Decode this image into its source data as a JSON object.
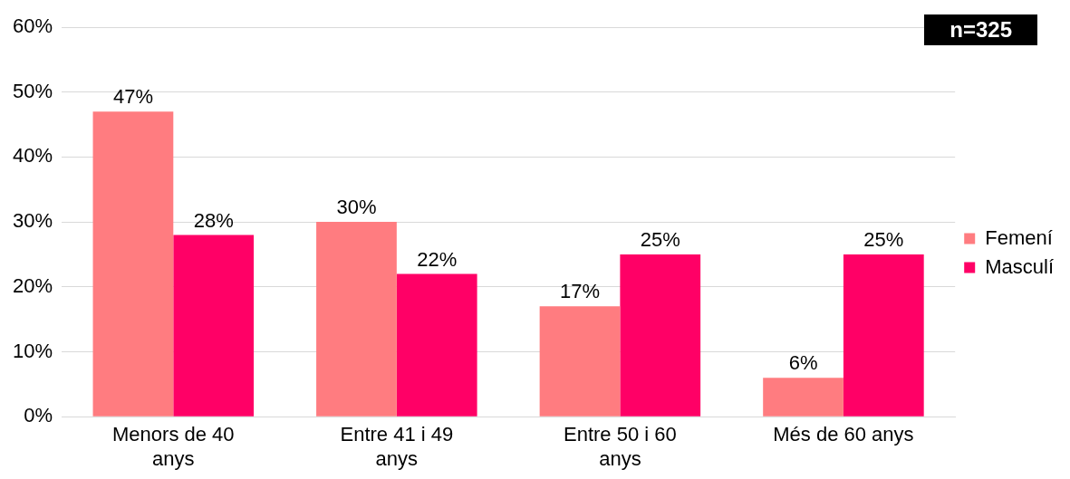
{
  "chart_data": {
    "type": "bar",
    "categories": [
      "Menors de 40 anys",
      "Entre 41 i 49 anys",
      "Entre 50 i 60 anys",
      "Més de 60 anys"
    ],
    "series": [
      {
        "name": "Femení",
        "color": "#ff7c80",
        "values": [
          47,
          30,
          17,
          6
        ],
        "value_labels": [
          "47%",
          "30%",
          "17%",
          "6%"
        ]
      },
      {
        "name": "Masculí",
        "color": "#ff0066",
        "values": [
          28,
          22,
          25,
          25
        ],
        "value_labels": [
          "28%",
          "22%",
          "25%",
          "25%"
        ]
      }
    ],
    "ylim": [
      0,
      60
    ],
    "yticks": [
      {
        "value": 0,
        "label": "0%"
      },
      {
        "value": 10,
        "label": "10%"
      },
      {
        "value": 20,
        "label": "20%"
      },
      {
        "value": 30,
        "label": "30%"
      },
      {
        "value": 40,
        "label": "40%"
      },
      {
        "value": 50,
        "label": "50%"
      },
      {
        "value": 60,
        "label": "60%"
      }
    ],
    "grid": "y",
    "legend": "right",
    "annotations": [
      "n=325"
    ]
  }
}
